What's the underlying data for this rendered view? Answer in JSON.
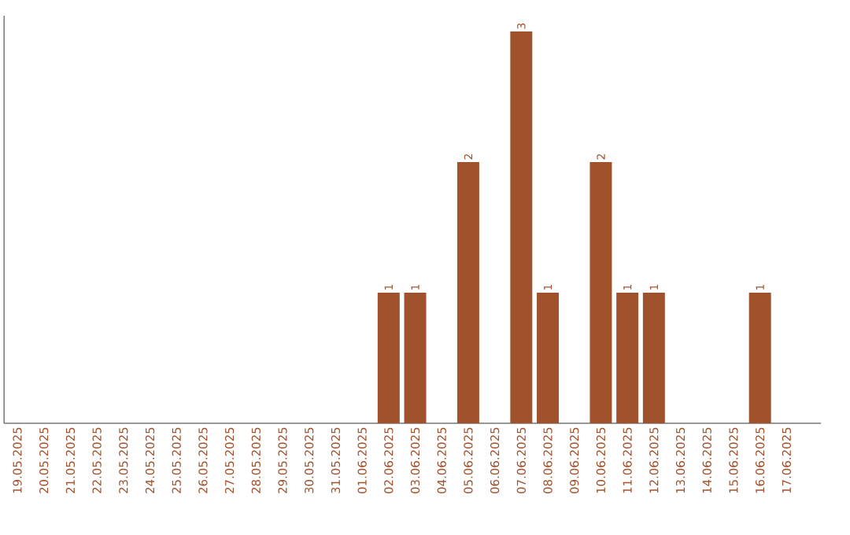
{
  "chart_data": {
    "type": "bar",
    "categories": [
      "19.05.2025",
      "20.05.2025",
      "21.05.2025",
      "22.05.2025",
      "23.05.2025",
      "24.05.2025",
      "25.05.2025",
      "26.05.2025",
      "27.05.2025",
      "28.05.2025",
      "29.05.2025",
      "30.05.2025",
      "31.05.2025",
      "01.06.2025",
      "02.06.2025",
      "03.06.2025",
      "04.06.2025",
      "05.06.2025",
      "06.06.2025",
      "07.06.2025",
      "08.06.2025",
      "09.06.2025",
      "10.06.2025",
      "11.06.2025",
      "12.06.2025",
      "13.06.2025",
      "14.06.2025",
      "15.06.2025",
      "16.06.2025",
      "17.06.2025"
    ],
    "values": [
      null,
      null,
      null,
      null,
      null,
      null,
      null,
      null,
      null,
      null,
      null,
      null,
      null,
      null,
      1,
      1,
      null,
      2,
      null,
      3,
      1,
      null,
      2,
      1,
      1,
      null,
      null,
      null,
      1,
      null
    ],
    "value_labels": [
      null,
      null,
      null,
      null,
      null,
      null,
      null,
      null,
      null,
      null,
      null,
      null,
      null,
      null,
      "1",
      "1",
      null,
      "2",
      null,
      "3",
      "1",
      null,
      "2",
      "1",
      "1",
      null,
      null,
      null,
      "1",
      null
    ],
    "color": "#a0522d"
  }
}
